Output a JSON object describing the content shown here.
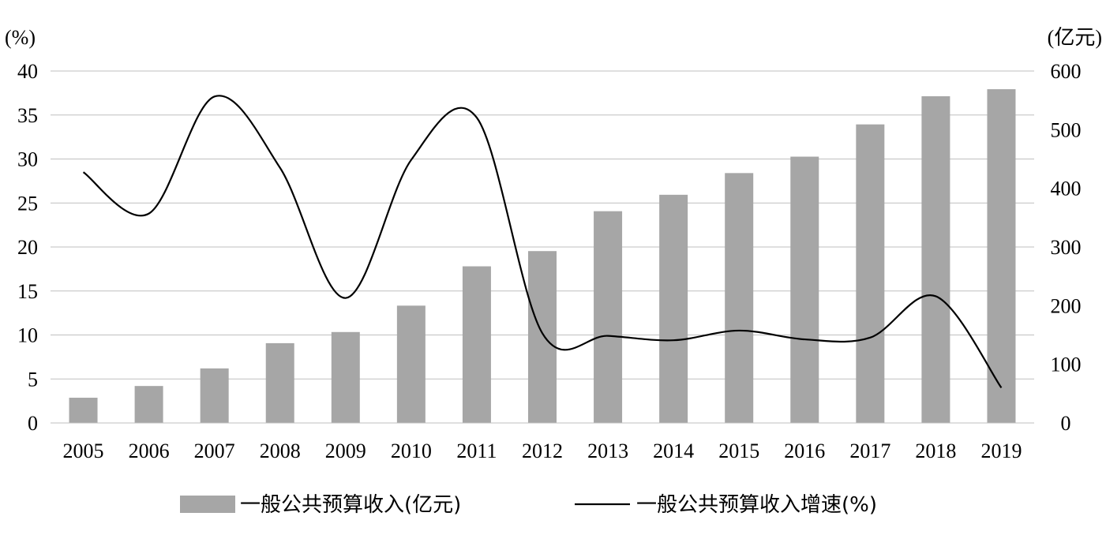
{
  "chart_data": {
    "type": "bar",
    "categories": [
      "2005",
      "2006",
      "2007",
      "2008",
      "2009",
      "2010",
      "2011",
      "2012",
      "2013",
      "2014",
      "2015",
      "2016",
      "2017",
      "2018",
      "2019"
    ],
    "series": [
      {
        "name": "一般公共预算收入(亿元)",
        "type": "bar",
        "axis": "right",
        "color": "#a6a6a6",
        "values": [
          43,
          63,
          93,
          136,
          155,
          200,
          267,
          293,
          361,
          389,
          426,
          454,
          509,
          557,
          569
        ]
      },
      {
        "name": "一般公共预算收入增速(%)",
        "type": "line",
        "axis": "left",
        "color": "#000000",
        "values": [
          28.5,
          23.8,
          37.1,
          29.0,
          14.2,
          29.9,
          34.7,
          10.2,
          9.9,
          9.4,
          10.5,
          9.5,
          9.7,
          14.4,
          4.0
        ]
      }
    ],
    "y_left": {
      "unit_label": "(%)",
      "range": [
        0,
        40
      ],
      "ticks": [
        "0",
        "5",
        "10",
        "15",
        "20",
        "25",
        "30",
        "35",
        "40"
      ]
    },
    "y_right": {
      "unit_label": "(亿元)",
      "range": [
        0,
        600
      ],
      "ticks": [
        "0",
        "100",
        "200",
        "300",
        "400",
        "500",
        "600"
      ]
    },
    "grid": true,
    "legend_position": "bottom"
  }
}
